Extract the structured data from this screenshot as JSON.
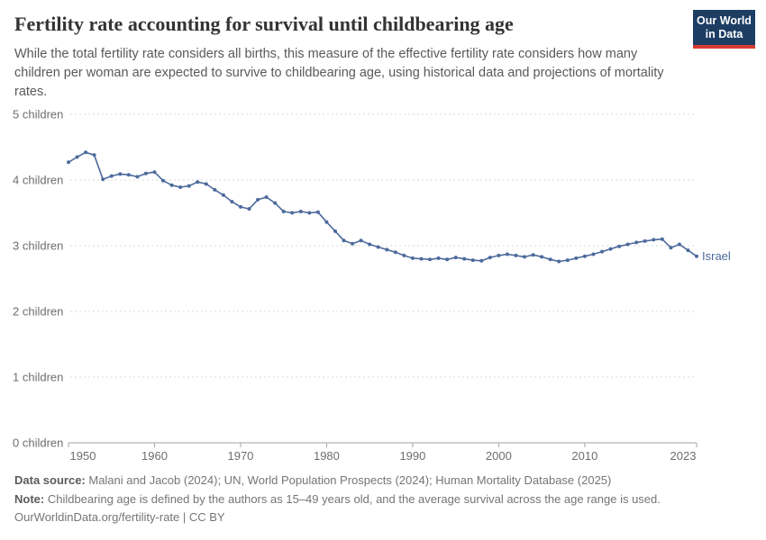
{
  "header": {
    "title": "Fertility rate accounting for survival until childbearing age",
    "subtitle": "While the total fertility rate considers all births, this measure of the effective fertility rate considers how many children per woman are expected to survive to childbearing age, using historical data and projections of mortality rates."
  },
  "logo": {
    "line1": "Our World",
    "line2": "in Data",
    "bg_color": "#1d3d63",
    "bar_color": "#d73c32"
  },
  "footer": {
    "source_label": "Data source:",
    "source_text": " Malani and Jacob (2024); UN, World Population Prospects (2024); Human Mortality Database (2025)",
    "note_label": "Note:",
    "note_text": " Childbearing age is defined by the authors as 15–49 years old, and the average survival across the age range is used.",
    "license": "OurWorldinData.org/fertility-rate | CC BY"
  },
  "chart_data": {
    "type": "line",
    "title": "Fertility rate accounting for survival until childbearing age",
    "xlabel": "",
    "ylabel": "children",
    "ylim": [
      0,
      5
    ],
    "yticks": [
      0,
      1,
      2,
      3,
      4,
      5
    ],
    "ytick_labels": [
      "0 children",
      "1 children",
      "2 children",
      "3 children",
      "4 children",
      "5 children"
    ],
    "xticks": [
      1950,
      1960,
      1970,
      1980,
      1990,
      2000,
      2010,
      2023
    ],
    "grid": "horizontal-dashed",
    "legend_position": "end-of-line-label",
    "axis_color": "#a3a3a3",
    "grid_color": "#dadada",
    "tick_text_color": "#6e6e6e",
    "x": [
      1950,
      1951,
      1952,
      1953,
      1954,
      1955,
      1956,
      1957,
      1958,
      1959,
      1960,
      1961,
      1962,
      1963,
      1964,
      1965,
      1966,
      1967,
      1968,
      1969,
      1970,
      1971,
      1972,
      1973,
      1974,
      1975,
      1976,
      1977,
      1978,
      1979,
      1980,
      1981,
      1982,
      1983,
      1984,
      1985,
      1986,
      1987,
      1988,
      1989,
      1990,
      1991,
      1992,
      1993,
      1994,
      1995,
      1996,
      1997,
      1998,
      1999,
      2000,
      2001,
      2002,
      2003,
      2004,
      2005,
      2006,
      2007,
      2008,
      2009,
      2010,
      2011,
      2012,
      2013,
      2014,
      2015,
      2016,
      2017,
      2018,
      2019,
      2020,
      2021,
      2022,
      2023
    ],
    "series": [
      {
        "name": "Israel",
        "color": "#4c6a9c",
        "values": [
          4.27,
          4.35,
          4.42,
          4.38,
          4.01,
          4.06,
          4.09,
          4.08,
          4.05,
          4.1,
          4.12,
          3.99,
          3.92,
          3.89,
          3.91,
          3.97,
          3.94,
          3.85,
          3.77,
          3.67,
          3.59,
          3.56,
          3.7,
          3.74,
          3.65,
          3.52,
          3.5,
          3.52,
          3.5,
          3.51,
          3.36,
          3.22,
          3.08,
          3.03,
          3.08,
          3.02,
          2.98,
          2.94,
          2.9,
          2.85,
          2.81,
          2.8,
          2.79,
          2.81,
          2.79,
          2.82,
          2.8,
          2.78,
          2.77,
          2.82,
          2.85,
          2.87,
          2.85,
          2.83,
          2.86,
          2.83,
          2.79,
          2.76,
          2.78,
          2.81,
          2.84,
          2.87,
          2.91,
          2.95,
          2.99,
          3.02,
          3.05,
          3.07,
          3.09,
          3.1,
          2.97,
          3.02,
          2.93,
          2.84
        ]
      }
    ]
  }
}
